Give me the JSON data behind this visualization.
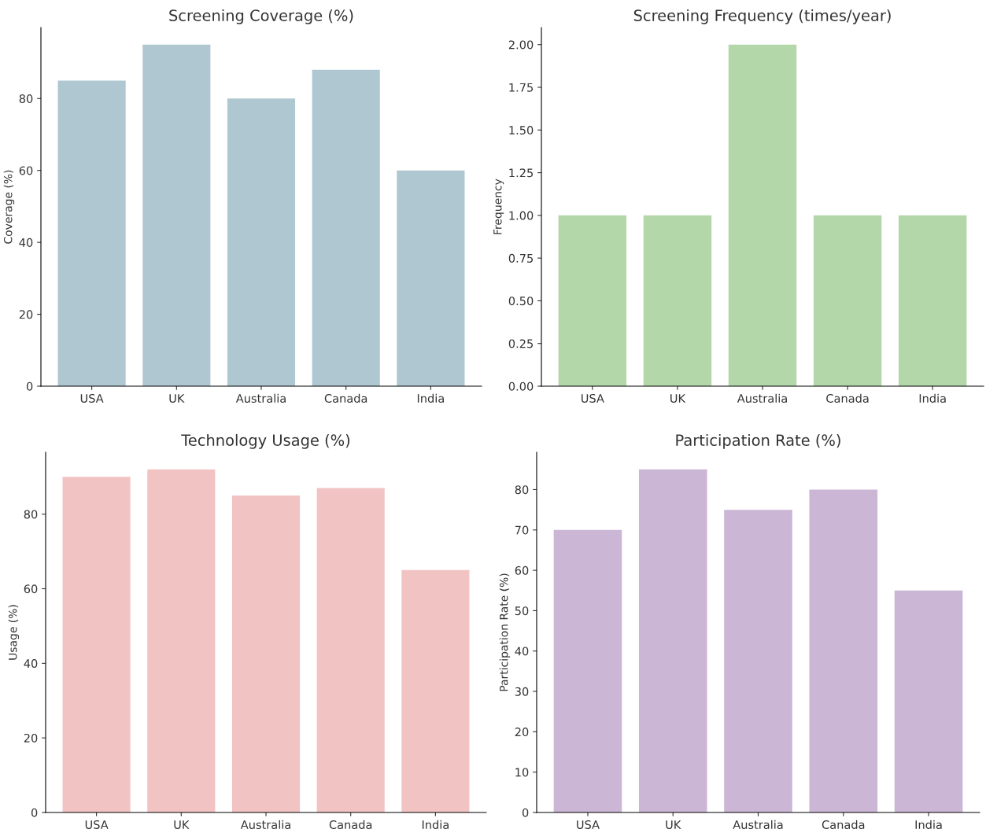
{
  "chart_data": [
    {
      "type": "bar",
      "title": "Screening Coverage (%)",
      "ylabel": "Coverage (%)",
      "categories": [
        "USA",
        "UK",
        "Australia",
        "Canada",
        "India"
      ],
      "values": [
        85,
        95,
        80,
        88,
        60
      ],
      "color": "#aec7d1",
      "ylim": [
        0,
        99.75
      ],
      "yticks": [
        0,
        20,
        40,
        60,
        80
      ],
      "grid": false,
      "legend": false
    },
    {
      "type": "bar",
      "title": "Screening Frequency (times/year)",
      "ylabel": "Frequency",
      "categories": [
        "USA",
        "UK",
        "Australia",
        "Canada",
        "India"
      ],
      "values": [
        1,
        1,
        2,
        1,
        1
      ],
      "color": "#b4d7aa",
      "ylim": [
        0,
        2.1
      ],
      "yticks": [
        {
          "value": 0,
          "label": "0.00"
        },
        {
          "value": 0.25,
          "label": "0.25"
        },
        {
          "value": 0.5,
          "label": "0.50"
        },
        {
          "value": 0.75,
          "label": "0.75"
        },
        {
          "value": 1,
          "label": "1.00"
        },
        {
          "value": 1.25,
          "label": "1.25"
        },
        {
          "value": 1.5,
          "label": "1.50"
        },
        {
          "value": 1.75,
          "label": "1.75"
        },
        {
          "value": 2,
          "label": "2.00"
        }
      ],
      "grid": false,
      "legend": false
    },
    {
      "type": "bar",
      "title": "Technology Usage (%)",
      "ylabel": "Usage (%)",
      "categories": [
        "USA",
        "UK",
        "Australia",
        "Canada",
        "India"
      ],
      "values": [
        90,
        92,
        85,
        87,
        65
      ],
      "color": "#f2c3c3",
      "ylim": [
        0,
        96.6
      ],
      "yticks": [
        0,
        20,
        40,
        60,
        80
      ],
      "grid": false,
      "legend": false
    },
    {
      "type": "bar",
      "title": "Participation Rate (%)",
      "ylabel": "Participation Rate (%)",
      "categories": [
        "USA",
        "UK",
        "Australia",
        "Canada",
        "India"
      ],
      "values": [
        70,
        85,
        75,
        80,
        55
      ],
      "color": "#cbb6d6",
      "ylim": [
        0,
        89.25
      ],
      "yticks": [
        0,
        10,
        20,
        30,
        40,
        50,
        60,
        70,
        80
      ],
      "grid": false,
      "legend": false
    }
  ]
}
